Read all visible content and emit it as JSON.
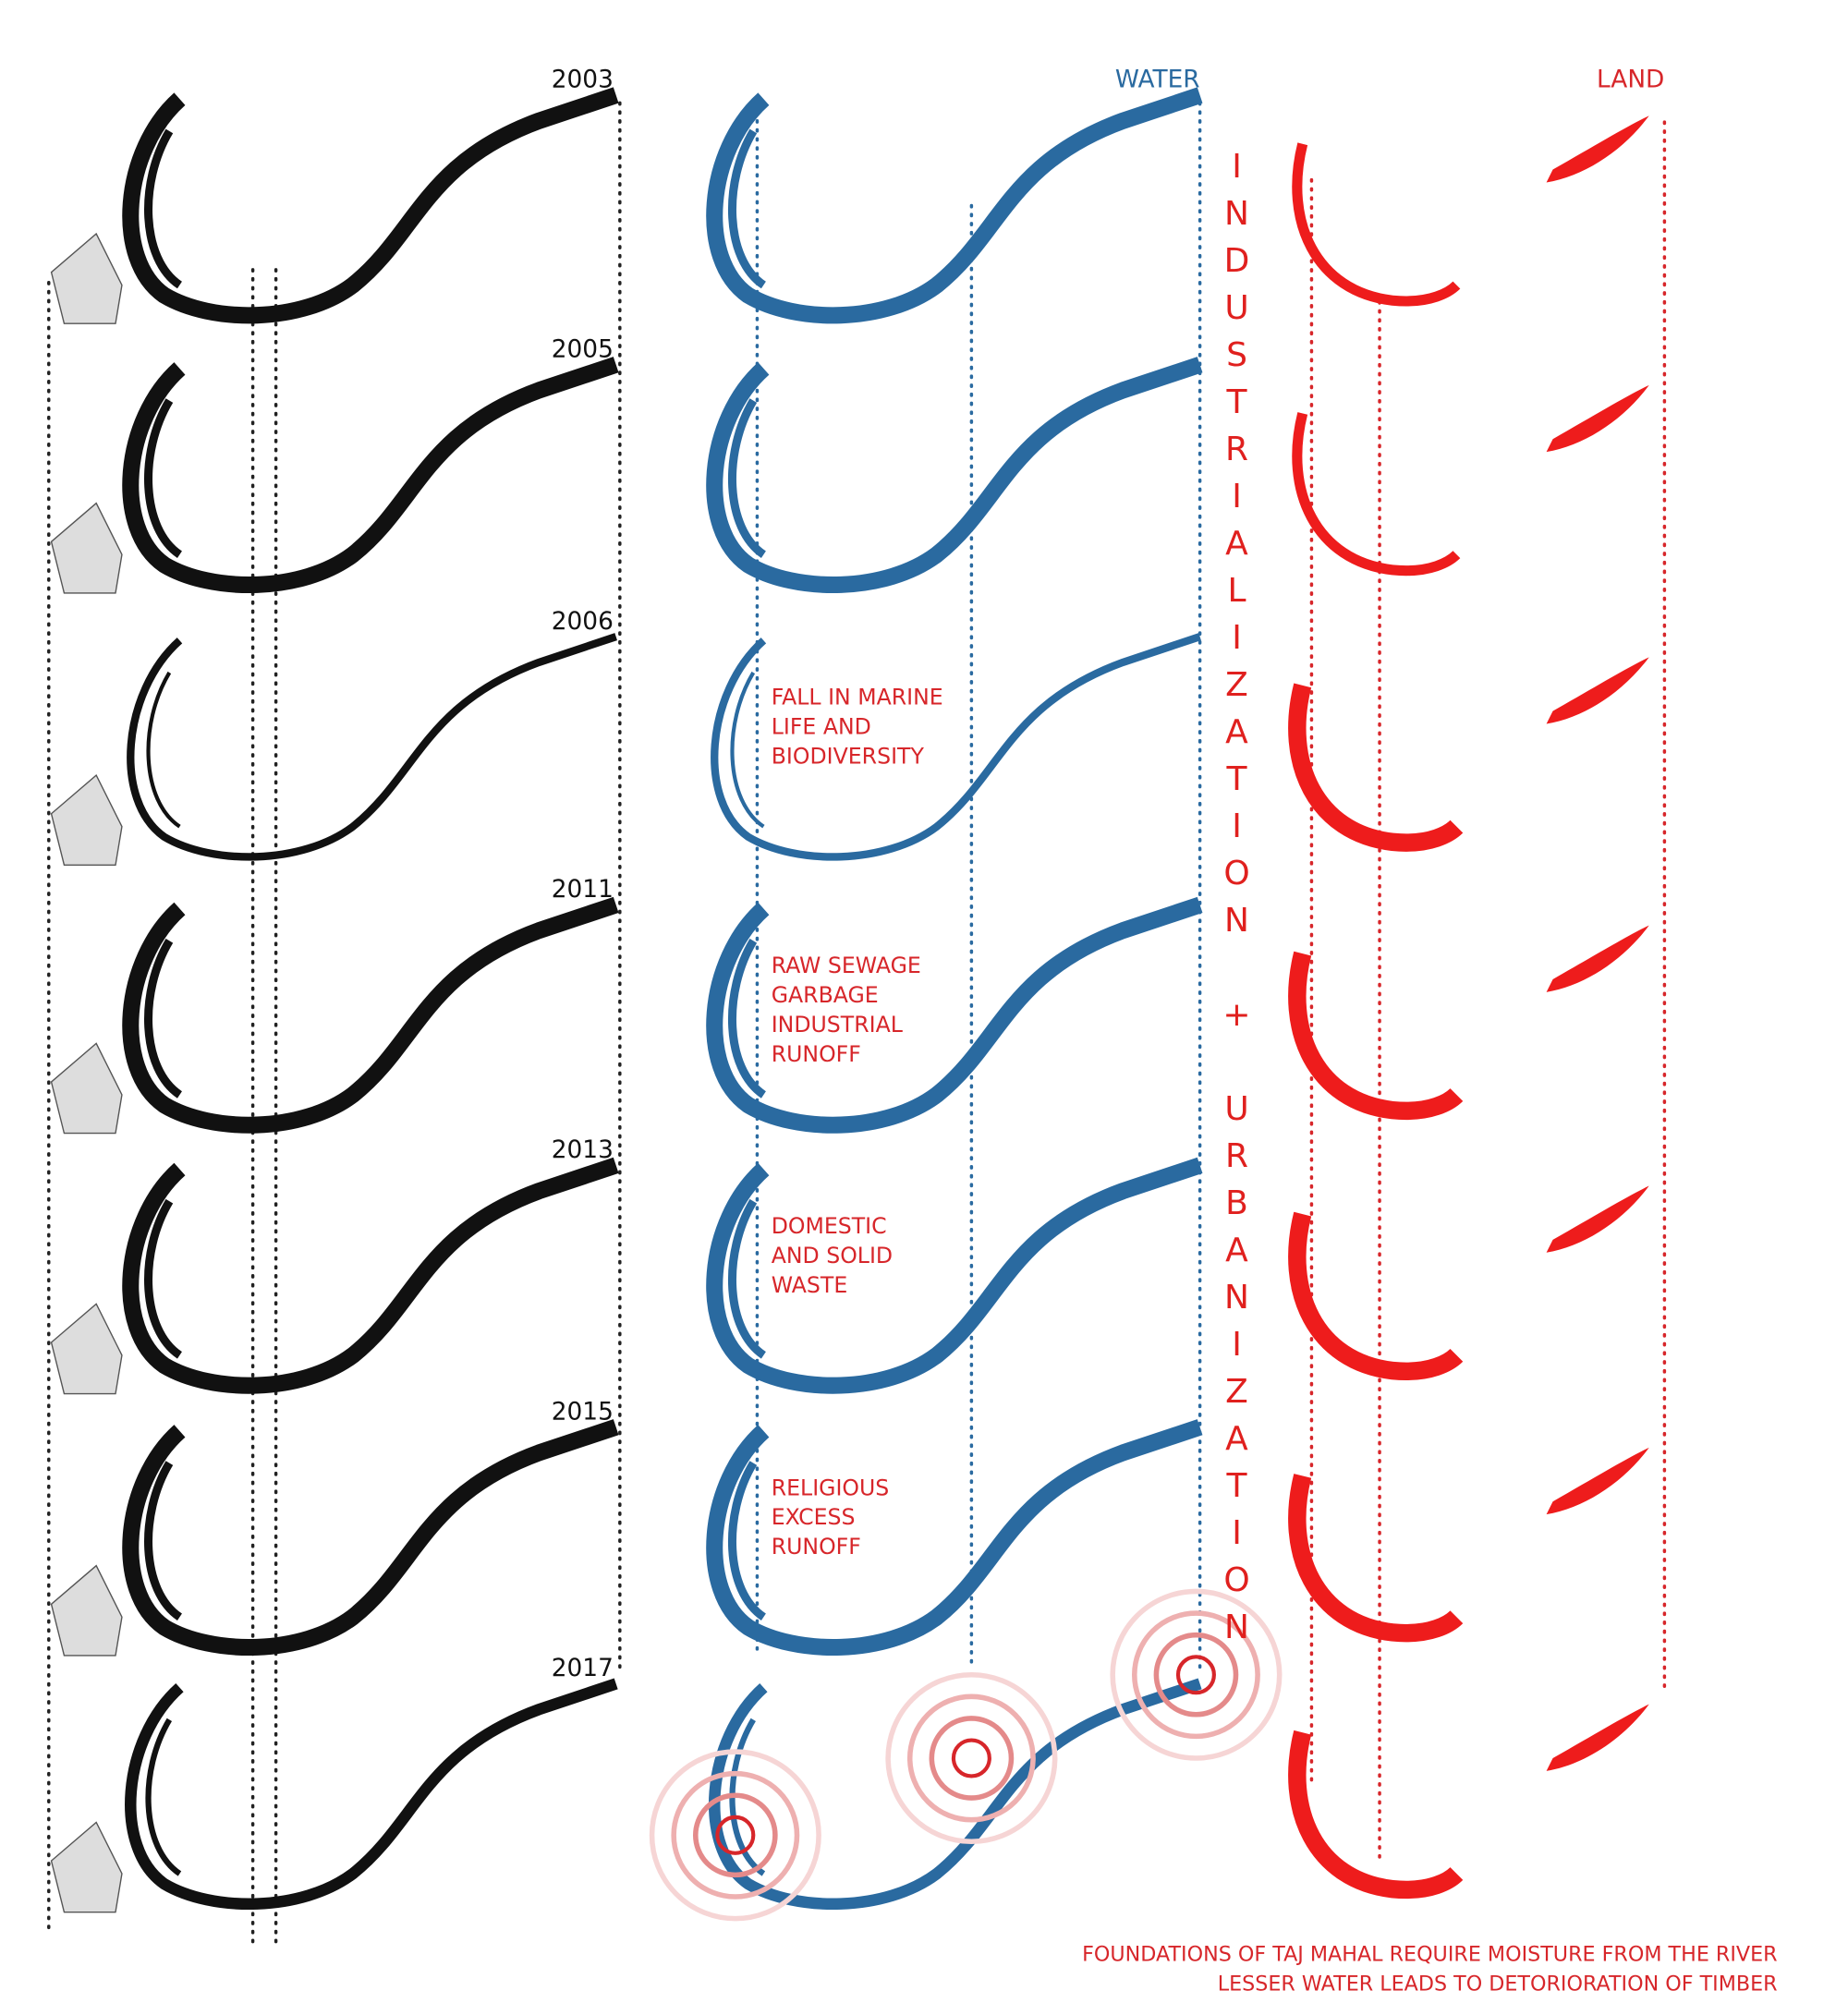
{
  "years": [
    "2003",
    "2005",
    "2006",
    "2011",
    "2013",
    "2015",
    "2017"
  ],
  "headers": {
    "water": "WATER",
    "land": "LAND"
  },
  "vertical_text": "INDUSTRIALIZATION + URBANIZATION",
  "annotations": [
    {
      "row": 2,
      "lines": [
        "FALL IN MARINE",
        "LIFE AND",
        "BIODIVERSITY"
      ]
    },
    {
      "row": 3,
      "lines": [
        "RAW SEWAGE",
        "GARBAGE",
        "INDUSTRIAL",
        "RUNOFF"
      ]
    },
    {
      "row": 4,
      "lines": [
        "DOMESTIC",
        "AND SOLID",
        "WASTE"
      ]
    },
    {
      "row": 5,
      "lines": [
        "RELIGIOUS",
        "EXCESS",
        "RUNOFF"
      ]
    }
  ],
  "footer": [
    "FOUNDATIONS OF TAJ MAHAL REQUIRE MOISTURE FROM THE RIVER",
    "LESSER WATER LEADS TO DETORIORATION OF TIMBER"
  ]
}
